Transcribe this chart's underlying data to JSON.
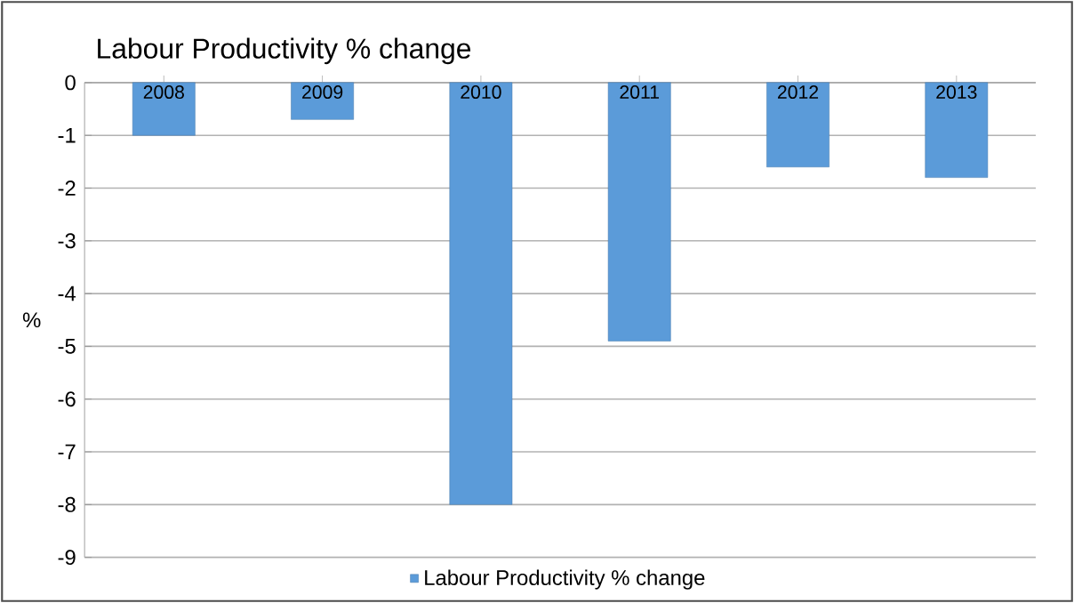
{
  "chart_data": {
    "type": "bar",
    "title": "Labour Productivity % change",
    "ylabel": "%",
    "categories": [
      "2008",
      "2009",
      "2010",
      "2011",
      "2012",
      "2013"
    ],
    "series": [
      {
        "name": "Labour Productivity % change",
        "color": "#5b9bd9",
        "values": [
          -1.0,
          -0.7,
          -8.0,
          -4.9,
          -1.6,
          -1.8
        ]
      }
    ],
    "ylim": [
      -9,
      0
    ],
    "yticks": [
      -9,
      -8,
      -7,
      -6,
      -5,
      -4,
      -3,
      -2,
      -1,
      0
    ],
    "grid": "y",
    "legend": "bottom"
  }
}
